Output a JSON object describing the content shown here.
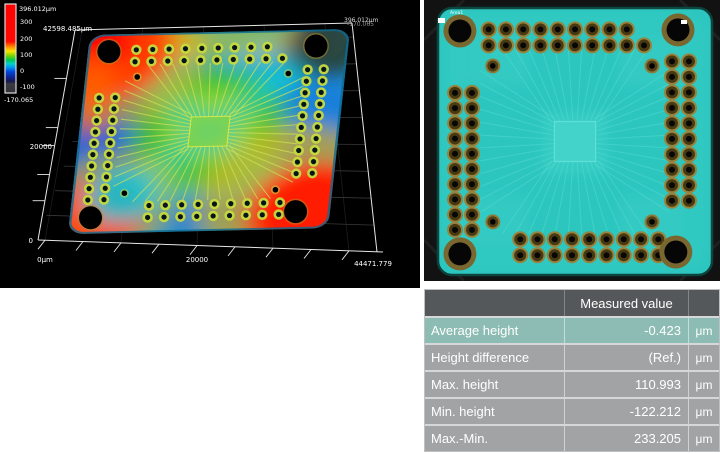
{
  "left_panel": {
    "colorbar": {
      "top_label": "396.012μm",
      "ticks": [
        "300",
        "200",
        "100",
        "0",
        "-100"
      ],
      "bottom_label": "-170.065"
    },
    "axes": {
      "width_label": "42598.485μm",
      "z_top_label": "396.012μm",
      "z_bottom_label": "-170.065",
      "y_tick_label": "20000",
      "y_origin_label": "0",
      "x_origin_label": "0μm",
      "x_mid_label": "20000",
      "x_max_label": "44471.779"
    }
  },
  "right_panel": {
    "marker_label": "Area1"
  },
  "table": {
    "header": "Measured value",
    "rows": [
      {
        "label": "Average height",
        "value": "-0.423",
        "unit": "μm"
      },
      {
        "label": "Height difference",
        "value": "(Ref.)",
        "unit": "μm"
      },
      {
        "label": "Max. height",
        "value": "110.993",
        "unit": "μm"
      },
      {
        "label": "Min. height",
        "value": "-122.212",
        "unit": "μm"
      },
      {
        "label": "Max.-Min.",
        "value": "233.205",
        "unit": "μm"
      }
    ]
  },
  "colors": {
    "selected_row_teal": "#8cbcb3",
    "header_grey": "#54585b",
    "row_grey": "#a2a3a5",
    "pcb_cyan": "#2cc6bf",
    "pad_gold": "#97823e",
    "scale_max_red": "#ff0000",
    "scale_min_blue": "#18184a"
  }
}
